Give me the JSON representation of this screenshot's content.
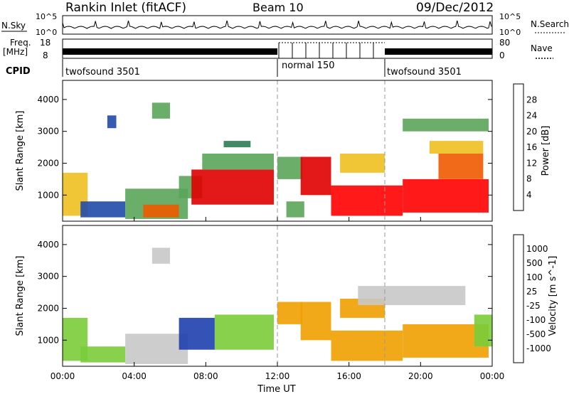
{
  "header": {
    "station": "Rankin Inlet (fitACF)",
    "beam": "Beam 10",
    "date": "09/Dec/2012"
  },
  "noise_panel": {
    "left_label": "N.Sky",
    "right_label": "N.Search",
    "tick_top": "10^5",
    "tick_bottom": "10^0",
    "right_tick_top": "10^5",
    "right_tick_bottom": "10^0"
  },
  "freq_panel": {
    "left_label_1": "Freq.",
    "left_label_2": "[MHz]",
    "tick_top": "18",
    "tick_bottom": "8",
    "right_label": "Nave",
    "right_tick_top": "80",
    "right_tick_bottom": "0",
    "freq_mhz_approx": 10
  },
  "cpid": {
    "label": "CPID",
    "segments": [
      {
        "name": "twofsound 3501",
        "start_hour": 0,
        "end_hour": 12
      },
      {
        "name": "normal 150",
        "start_hour": 12,
        "end_hour": 18
      },
      {
        "name": "twofsound 3501",
        "start_hour": 18,
        "end_hour": 24
      }
    ]
  },
  "colors": {
    "power": [
      "#0000ff",
      "#1f4aa8",
      "#2e7d55",
      "#5aa55a",
      "#f0c020",
      "#f08c00",
      "#f05a00",
      "#e00000",
      "#ff0000"
    ],
    "velocity": [
      "#1f3fae",
      "#2a6fb8",
      "#3a9c4a",
      "#7acc3a",
      "#c8c8c8",
      "#f0a000",
      "#f07000",
      "#e84000",
      "#ff0000"
    ],
    "background": "#ffffff"
  },
  "chart_data": [
    {
      "type": "heatmap",
      "title": "",
      "ylabel": "Slant Range [km]",
      "xlabel": "",
      "xlim_hours": [
        0,
        24
      ],
      "ylim_km": [
        180,
        4600
      ],
      "yticks": [
        "1000",
        "2000",
        "3000",
        "4000"
      ],
      "colorbar": {
        "label": "Power [dB]",
        "ticks": [
          "4",
          "8",
          "12",
          "16",
          "20",
          "24",
          "28"
        ],
        "range": [
          0,
          30
        ]
      },
      "regions": [
        {
          "t0": 0.0,
          "t1": 1.4,
          "r0": 350,
          "r1": 1700,
          "value": 14
        },
        {
          "t0": 1.0,
          "t1": 3.5,
          "r0": 300,
          "r1": 800,
          "value": 6
        },
        {
          "t0": 2.5,
          "t1": 3.0,
          "r0": 3100,
          "r1": 3500,
          "value": 6
        },
        {
          "t0": 3.5,
          "t1": 7.0,
          "r0": 250,
          "r1": 1200,
          "value": 10
        },
        {
          "t0": 4.5,
          "t1": 6.5,
          "r0": 300,
          "r1": 700,
          "value": 20
        },
        {
          "t0": 5.0,
          "t1": 6.0,
          "r0": 3400,
          "r1": 3900,
          "value": 10
        },
        {
          "t0": 6.5,
          "t1": 7.8,
          "r0": 900,
          "r1": 1600,
          "value": 10
        },
        {
          "t0": 7.2,
          "t1": 11.8,
          "r0": 700,
          "r1": 1800,
          "value": 26
        },
        {
          "t0": 7.8,
          "t1": 11.8,
          "r0": 1800,
          "r1": 2300,
          "value": 10
        },
        {
          "t0": 9.0,
          "t1": 10.5,
          "r0": 2500,
          "r1": 2700,
          "value": 8
        },
        {
          "t0": 12.0,
          "t1": 13.4,
          "r0": 1500,
          "r1": 2200,
          "value": 12
        },
        {
          "t0": 12.5,
          "t1": 13.5,
          "r0": 300,
          "r1": 800,
          "value": 10
        },
        {
          "t0": 13.3,
          "t1": 15.0,
          "r0": 1000,
          "r1": 2200,
          "value": 24
        },
        {
          "t0": 15.0,
          "t1": 19.0,
          "r0": 350,
          "r1": 1300,
          "value": 28
        },
        {
          "t0": 15.5,
          "t1": 18.0,
          "r0": 1700,
          "r1": 2300,
          "value": 16
        },
        {
          "t0": 19.0,
          "t1": 23.8,
          "r0": 450,
          "r1": 1500,
          "value": 27
        },
        {
          "t0": 21.0,
          "t1": 23.5,
          "r0": 1500,
          "r1": 2300,
          "value": 20
        },
        {
          "t0": 20.5,
          "t1": 23.5,
          "r0": 2300,
          "r1": 2700,
          "value": 16
        },
        {
          "t0": 19.0,
          "t1": 23.8,
          "r0": 3000,
          "r1": 3400,
          "value": 12
        }
      ]
    },
    {
      "type": "heatmap",
      "title": "",
      "ylabel": "Slant Range [km]",
      "xlabel": "Time UT",
      "xlim_hours": [
        0,
        24
      ],
      "ylim_km": [
        180,
        4600
      ],
      "xticks": [
        "00:00",
        "04:00",
        "08:00",
        "12:00",
        "16:00",
        "20:00",
        "00:00"
      ],
      "yticks": [
        "1000",
        "2000",
        "3000",
        "4000"
      ],
      "colorbar": {
        "label": "Velocity [m s^-1]",
        "ticks": [
          "1000",
          "500",
          "100",
          "25",
          "-25",
          "-100",
          "-500",
          "-1000"
        ],
        "range": [
          -1000,
          1000
        ]
      },
      "regions": [
        {
          "t0": 0.0,
          "t1": 1.4,
          "r0": 350,
          "r1": 1700,
          "value": 300
        },
        {
          "t0": 1.0,
          "t1": 3.5,
          "r0": 300,
          "r1": 800,
          "value": 150
        },
        {
          "t0": 3.5,
          "t1": 7.0,
          "r0": 250,
          "r1": 1200,
          "value": 0
        },
        {
          "t0": 5.0,
          "t1": 6.0,
          "r0": 3400,
          "r1": 3900,
          "value": -100
        },
        {
          "t0": 6.5,
          "t1": 8.5,
          "r0": 700,
          "r1": 1700,
          "value": 800
        },
        {
          "t0": 8.5,
          "t1": 11.8,
          "r0": 700,
          "r1": 1800,
          "value": 300
        },
        {
          "t0": 12.0,
          "t1": 13.4,
          "r0": 1500,
          "r1": 2200,
          "value": -150
        },
        {
          "t0": 13.3,
          "t1": 15.0,
          "r0": 1000,
          "r1": 2200,
          "value": -250
        },
        {
          "t0": 15.0,
          "t1": 19.0,
          "r0": 350,
          "r1": 1300,
          "value": -300
        },
        {
          "t0": 15.5,
          "t1": 18.0,
          "r0": 1700,
          "r1": 2300,
          "value": -200
        },
        {
          "t0": 16.5,
          "t1": 22.5,
          "r0": 2100,
          "r1": 2700,
          "value": 0
        },
        {
          "t0": 19.0,
          "t1": 23.8,
          "r0": 450,
          "r1": 1500,
          "value": -300
        },
        {
          "t0": 23.0,
          "t1": 24.0,
          "r0": 800,
          "r1": 1800,
          "value": 200
        }
      ]
    }
  ]
}
